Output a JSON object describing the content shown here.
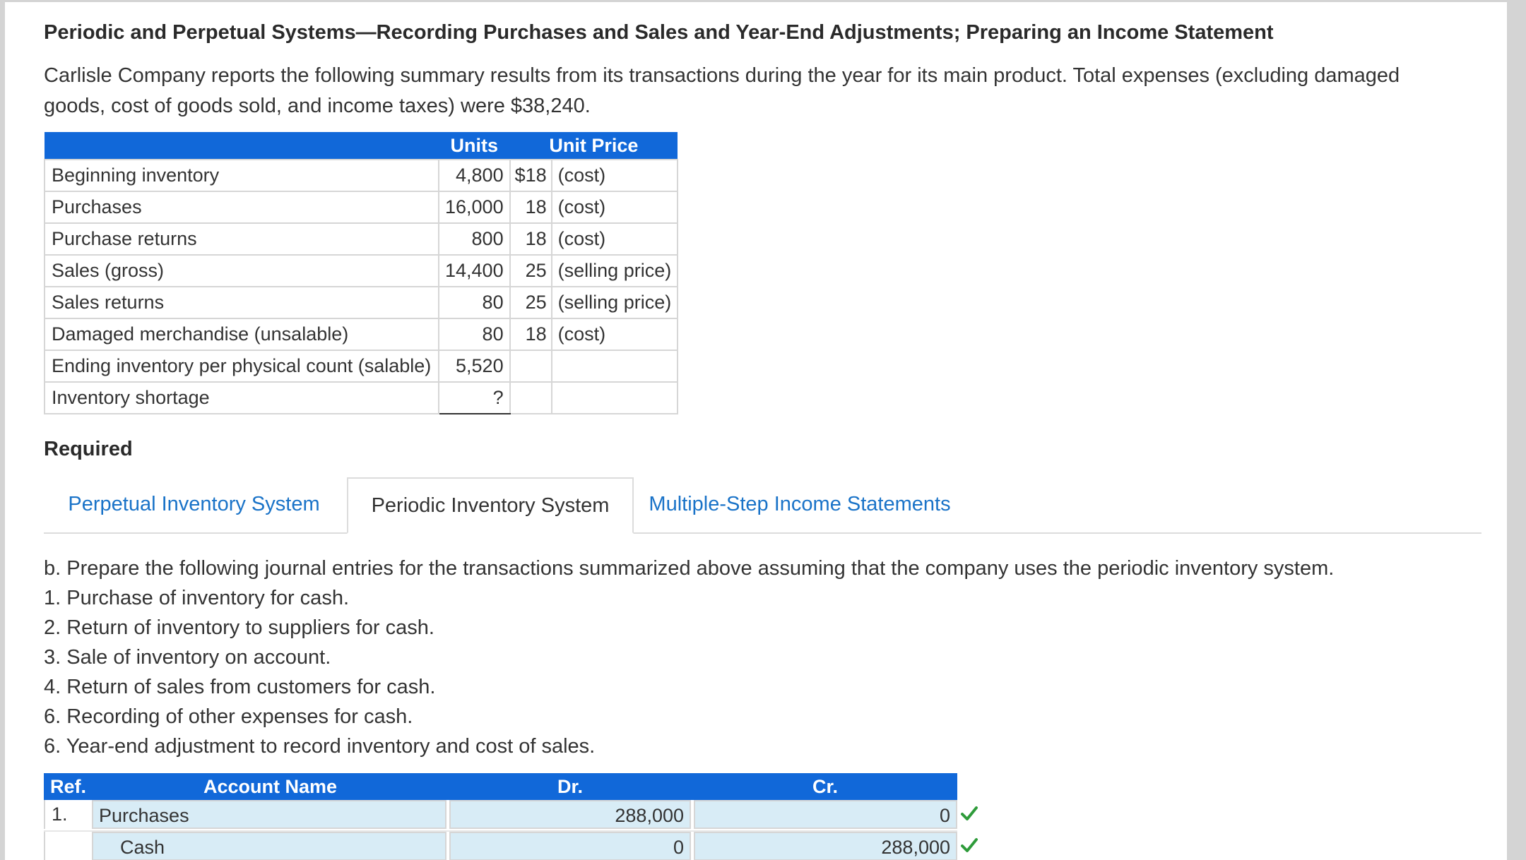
{
  "title": "Periodic and Perpetual Systems—Recording Purchases and Sales and Year-End Adjustments; Preparing an Income Statement",
  "intro": "Carlisle Company reports the following summary results from its transactions during the year for its main product. Total expenses (excluding damaged goods, cost of goods sold, and income taxes) were $38,240.",
  "summary_table": {
    "headers": {
      "units": "Units",
      "unit_price": "Unit Price"
    },
    "rows": [
      {
        "label": "Beginning inventory",
        "units": "4,800",
        "price": "$18",
        "note": "(cost)"
      },
      {
        "label": "Purchases",
        "units": "16,000",
        "price": "18",
        "note": "(cost)"
      },
      {
        "label": "Purchase returns",
        "units": "800",
        "price": "18",
        "note": "(cost)"
      },
      {
        "label": "Sales (gross)",
        "units": "14,400",
        "price": "25",
        "note": "(selling price)"
      },
      {
        "label": "Sales returns",
        "units": "80",
        "price": "25",
        "note": "(selling price)"
      },
      {
        "label": "Damaged merchandise (unsalable)",
        "units": "80",
        "price": "18",
        "note": "(cost)"
      },
      {
        "label": "Ending inventory per physical count (salable)",
        "units": "5,520",
        "price": "",
        "note": ""
      },
      {
        "label": "Inventory shortage",
        "units": "?",
        "price": "",
        "note": ""
      }
    ]
  },
  "required_label": "Required",
  "tabs": [
    {
      "label": "Perpetual Inventory System",
      "active": false
    },
    {
      "label": "Periodic Inventory System",
      "active": true
    },
    {
      "label": "Multiple-Step Income Statements",
      "active": false
    }
  ],
  "instructions": {
    "intro": "b. Prepare the following journal entries for the transactions summarized above assuming that the company uses the periodic inventory system.",
    "items": [
      "1. Purchase of inventory for cash.",
      "2. Return of inventory to suppliers for cash.",
      "3. Sale of inventory on account.",
      "4. Return of sales from customers for cash.",
      "6. Recording of other expenses for cash.",
      "6. Year-end adjustment to record inventory and cost of sales."
    ]
  },
  "journal": {
    "headers": {
      "ref": "Ref.",
      "account": "Account Name",
      "dr": "Dr.",
      "cr": "Cr."
    },
    "rows": [
      {
        "ref": "1.",
        "account": "Purchases",
        "dr": "288,000",
        "cr": "0"
      },
      {
        "ref": "",
        "account": "Cash",
        "dr": "0",
        "cr": "288,000"
      }
    ]
  },
  "colors": {
    "header_blue": "#1168d9",
    "link_blue": "#1a73c8",
    "input_bg": "#d8ecf6",
    "check_green": "#2e9b3a"
  },
  "icons": {
    "correct": "checkmark-icon"
  }
}
